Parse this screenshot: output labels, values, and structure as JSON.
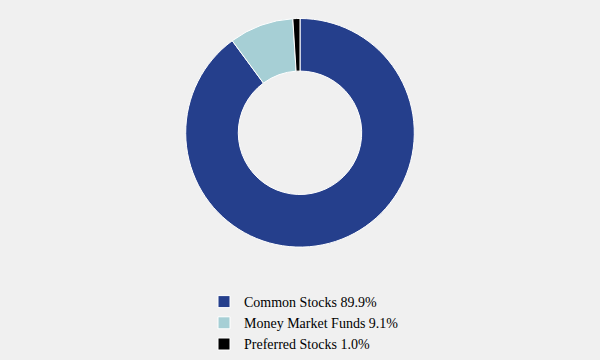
{
  "chart_data": {
    "type": "pie",
    "categories": [
      "Common Stocks 89.9%",
      "Money Market Funds 9.1%",
      "Preferred Stocks 1.0%"
    ],
    "values": [
      89.9,
      9.1,
      1.0
    ],
    "colors": [
      "#253f8c",
      "#a6cfd5",
      "#000000"
    ],
    "legend": "bottom"
  }
}
